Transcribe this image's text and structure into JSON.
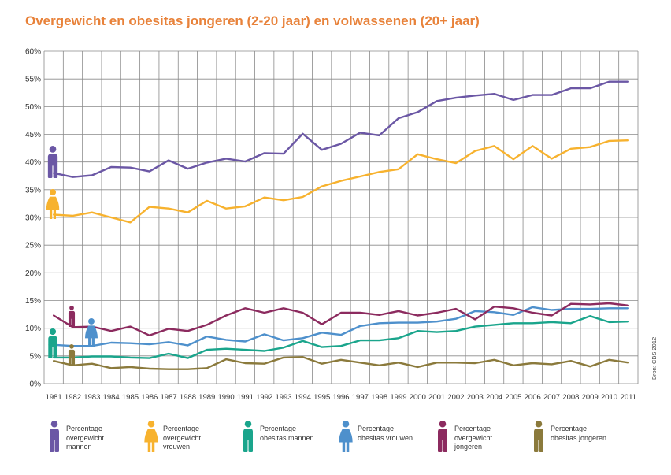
{
  "title": "Overgewicht en obesitas jongeren (2-20 jaar) en volwassenen (20+ jaar)",
  "colors": {
    "title": "#e8823a",
    "grid": "#8a8a8a",
    "axis_text": "#333333"
  },
  "source": "Bron: CBS 2012",
  "chart_data": {
    "type": "line",
    "title": "Overgewicht en obesitas jongeren (2-20 jaar) en volwassenen (20+ jaar)",
    "xlabel": "",
    "ylabel": "",
    "ylim": [
      0,
      60
    ],
    "y_ticks": [
      "0%",
      "5%",
      "10%",
      "15%",
      "20%",
      "25%",
      "30%",
      "35%",
      "40%",
      "45%",
      "50%",
      "55%",
      "60%"
    ],
    "grid": true,
    "legend_position": "bottom",
    "categories": [
      "1981",
      "1982",
      "1983",
      "1984",
      "1985",
      "1986",
      "1987",
      "1988",
      "1989",
      "1990",
      "1991",
      "1992",
      "1993",
      "1994",
      "1995",
      "1996",
      "1997",
      "1998",
      "1999",
      "2000",
      "2001",
      "2002",
      "2003",
      "2004",
      "2005",
      "2006",
      "2007",
      "2008",
      "2009",
      "2010",
      "2011"
    ],
    "series": [
      {
        "name": "Percentage overgewicht mannen",
        "color": "#6b57a5",
        "icon": "man-icon",
        "values": [
          38,
          37.3,
          37.6,
          39.1,
          39,
          38.3,
          40.3,
          38.8,
          39.9,
          40.6,
          40.1,
          41.6,
          41.5,
          45.1,
          42.2,
          43.3,
          45.3,
          44.8,
          47.9,
          49,
          51,
          51.6,
          52,
          52.3,
          51.2,
          52.1,
          52.1,
          53.3,
          53.3,
          54.5,
          54.5
        ]
      },
      {
        "name": "Percentage overgewicht vrouwen",
        "color": "#f7b22e",
        "icon": "woman-icon",
        "values": [
          30.5,
          30.3,
          30.9,
          30,
          29.1,
          31.9,
          31.6,
          30.9,
          33,
          31.6,
          32,
          33.6,
          33.1,
          33.7,
          35.6,
          36.6,
          37.4,
          38.2,
          38.7,
          41.4,
          40.5,
          39.8,
          42,
          42.9,
          40.5,
          42.9,
          40.6,
          42.4,
          42.7,
          43.8,
          43.9
        ]
      },
      {
        "name": "Percentage obesitas mannen",
        "color": "#1aa58c",
        "icon": "man-icon",
        "values": [
          4.7,
          4.7,
          4.9,
          4.9,
          4.7,
          4.6,
          5.4,
          4.6,
          6.1,
          6.3,
          6.1,
          5.9,
          6.5,
          7.7,
          6.6,
          6.8,
          7.8,
          7.8,
          8.2,
          9.5,
          9.3,
          9.5,
          10.3,
          10.6,
          10.9,
          10.9,
          11.1,
          10.9,
          12.2,
          11.1,
          11.2
        ]
      },
      {
        "name": "Percentage obesitas vrouwen",
        "color": "#4e90cc",
        "icon": "woman-icon",
        "values": [
          7,
          6.8,
          6.8,
          7.4,
          7.3,
          7.1,
          7.5,
          6.9,
          8.5,
          7.9,
          7.6,
          8.9,
          7.8,
          8.2,
          9.2,
          8.8,
          10.4,
          10.9,
          11,
          11,
          11.2,
          11.7,
          13.1,
          12.9,
          12.4,
          13.8,
          13.3,
          13.5,
          13.5,
          13.6,
          13.6
        ]
      },
      {
        "name": "Percentage overgewicht jongeren",
        "color": "#8c2b5f",
        "icon": "man-icon",
        "values": [
          12.3,
          10.2,
          10.3,
          9.5,
          10.3,
          8.7,
          9.9,
          9.5,
          10.6,
          12.3,
          13.6,
          12.8,
          13.6,
          12.8,
          10.7,
          12.8,
          12.8,
          12.4,
          13.1,
          12.3,
          12.8,
          13.5,
          11.6,
          13.9,
          13.6,
          12.8,
          12.3,
          14.4,
          14.3,
          14.5,
          14.1
        ]
      },
      {
        "name": "Percentage obesitas jongeren",
        "color": "#8b7a3c",
        "icon": "man-icon",
        "values": [
          4.1,
          3.3,
          3.6,
          2.8,
          3,
          2.7,
          2.6,
          2.6,
          2.8,
          4.4,
          3.7,
          3.6,
          4.7,
          4.8,
          3.6,
          4.3,
          3.8,
          3.3,
          3.8,
          3,
          3.8,
          3.8,
          3.7,
          4.3,
          3.3,
          3.7,
          3.5,
          4.1,
          3.1,
          4.3,
          3.8
        ]
      }
    ]
  },
  "legend": [
    {
      "label": "Percentage overgewicht mannen",
      "color": "#6b57a5",
      "icon": "man-icon"
    },
    {
      "label": "Percentage overgewicht vrouwen",
      "color": "#f7b22e",
      "icon": "woman-icon"
    },
    {
      "label": "Percentage obesitas mannen",
      "color": "#1aa58c",
      "icon": "man-icon"
    },
    {
      "label": "Percentage obesitas vrouwen",
      "color": "#4e90cc",
      "icon": "woman-icon"
    },
    {
      "label": "Percentage overgewicht jongeren",
      "color": "#8c2b5f",
      "icon": "man-icon"
    },
    {
      "label": "Percentage obesitas jongeren",
      "color": "#8b7a3c",
      "icon": "man-icon"
    }
  ]
}
